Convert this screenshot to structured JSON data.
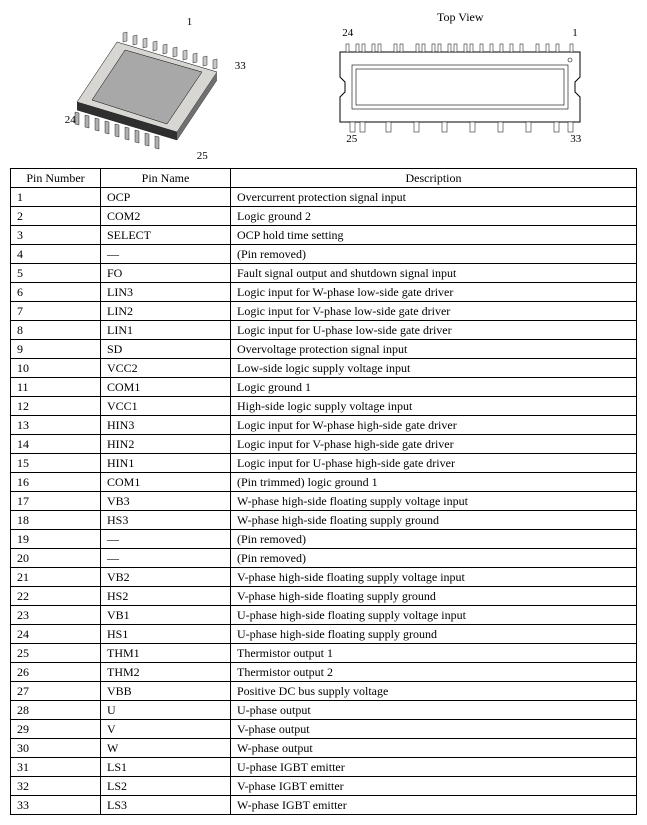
{
  "top_view_label": "Top View",
  "iso_labels": {
    "p1": "1",
    "p24": "24",
    "p25": "25",
    "p33": "33"
  },
  "top_labels": {
    "p1": "1",
    "p24": "24",
    "p25": "25",
    "p33": "33"
  },
  "table": {
    "headers": {
      "num": "Pin Number",
      "name": "Pin Name",
      "desc": "Description"
    },
    "rows": [
      {
        "num": "1",
        "name": "OCP",
        "desc": "Overcurrent protection signal input"
      },
      {
        "num": "2",
        "name": "COM2",
        "desc": "Logic ground 2"
      },
      {
        "num": "3",
        "name": "SELECT",
        "desc": "OCP hold time setting"
      },
      {
        "num": "4",
        "name": "—",
        "desc": "(Pin removed)"
      },
      {
        "num": "5",
        "name": "FO",
        "desc": "Fault signal output and shutdown signal input"
      },
      {
        "num": "6",
        "name": "LIN3",
        "desc": "Logic input for W-phase low-side gate driver"
      },
      {
        "num": "7",
        "name": "LIN2",
        "desc": "Logic input for V-phase low-side gate driver"
      },
      {
        "num": "8",
        "name": "LIN1",
        "desc": "Logic input for U-phase low-side gate driver"
      },
      {
        "num": "9",
        "name": "SD",
        "desc": "Overvoltage protection signal input"
      },
      {
        "num": "10",
        "name": "VCC2",
        "desc": "Low-side logic supply voltage input"
      },
      {
        "num": "11",
        "name": "COM1",
        "desc": "Logic ground 1"
      },
      {
        "num": "12",
        "name": "VCC1",
        "desc": "High-side logic supply voltage input"
      },
      {
        "num": "13",
        "name": "HIN3",
        "desc": "Logic input for W-phase high-side gate driver"
      },
      {
        "num": "14",
        "name": "HIN2",
        "desc": "Logic input for V-phase high-side gate driver"
      },
      {
        "num": "15",
        "name": "HIN1",
        "desc": "Logic input for U-phase high-side gate driver"
      },
      {
        "num": "16",
        "name": "COM1",
        "desc": "(Pin trimmed) logic ground 1"
      },
      {
        "num": "17",
        "name": "VB3",
        "desc": "W-phase high-side floating supply voltage input"
      },
      {
        "num": "18",
        "name": "HS3",
        "desc": "W-phase high-side floating supply ground"
      },
      {
        "num": "19",
        "name": "—",
        "desc": "(Pin removed)"
      },
      {
        "num": "20",
        "name": "—",
        "desc": "(Pin removed)"
      },
      {
        "num": "21",
        "name": "VB2",
        "desc": "V-phase high-side floating supply voltage input"
      },
      {
        "num": "22",
        "name": "HS2",
        "desc": "V-phase high-side floating supply ground"
      },
      {
        "num": "23",
        "name": "VB1",
        "desc": "U-phase high-side floating supply voltage input"
      },
      {
        "num": "24",
        "name": "HS1",
        "desc": "U-phase high-side floating supply ground"
      },
      {
        "num": "25",
        "name": "THM1",
        "desc": "Thermistor output 1"
      },
      {
        "num": "26",
        "name": "THM2",
        "desc": "Thermistor output 2"
      },
      {
        "num": "27",
        "name": "VBB",
        "desc": "Positive DC bus supply voltage"
      },
      {
        "num": "28",
        "name": "U",
        "desc": "U-phase output"
      },
      {
        "num": "29",
        "name": "V",
        "desc": "V-phase output"
      },
      {
        "num": "30",
        "name": "W",
        "desc": "W-phase output"
      },
      {
        "num": "31",
        "name": "LS1",
        "desc": "U-phase IGBT emitter"
      },
      {
        "num": "32",
        "name": "LS2",
        "desc": "V-phase IGBT emitter"
      },
      {
        "num": "33",
        "name": "LS3",
        "desc": "W-phase IGBT emitter"
      }
    ]
  },
  "colors": {
    "package_body_light": "#e8e6e2",
    "package_body_dark": "#5a5a5a",
    "package_top": "#b8b8b8",
    "pin_metal": "#a0a0a0",
    "outline": "#000000"
  }
}
